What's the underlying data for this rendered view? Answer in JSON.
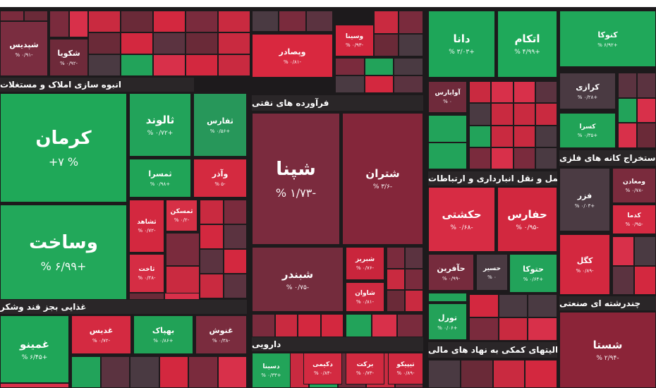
{
  "sections": [
    {
      "title": "انبوه سازی املاک و مستغلات"
    },
    {
      "title": "فرآورده های نفتی"
    },
    {
      "title": "ستخراج کانه های فلزی"
    },
    {
      "title": "حمل و نقل انبارداری و ارتباطات"
    },
    {
      "title": "غذایی بجز قند وشکر"
    },
    {
      "title": "دارویی"
    },
    {
      "title": "چندرشته ای صنعتی"
    },
    {
      "title": "فعالیتهای کمکی به نهاد های مالی"
    }
  ],
  "tiles": [
    {
      "label": "شپدیس",
      "change": "% ۰/۹۱-",
      "color": "#7a2d40"
    },
    {
      "label": "شکویا",
      "change": "% ۰/۹۲-",
      "color": "#6e2a3a"
    },
    {
      "label": "کرمان",
      "change": "+۷ %",
      "color": "#1fa858"
    },
    {
      "label": "وساخت",
      "change": "% ۶/۹۹+",
      "color": "#22a85a"
    },
    {
      "label": "ثالوند",
      "change": "% ۰/۷۲+",
      "color": "#22a35a"
    },
    {
      "label": "ثفارس",
      "change": "% ۰/۵۶+",
      "color": "#27975a"
    },
    {
      "label": "ثمسرا",
      "change": "% ۰/۹۸+",
      "color": "#20a457"
    },
    {
      "label": "وآذر",
      "change": "% ۵-",
      "color": "#d42a40"
    },
    {
      "label": "ثمسکن",
      "change": "% ۰/۲-",
      "color": "#d63046"
    },
    {
      "label": "ثشاهد",
      "change": "% ۰/۷۲-",
      "color": "#d3283f"
    },
    {
      "label": "ثاخت",
      "change": "% ۰/۲۸-",
      "color": "#d52d44"
    },
    {
      "label": "وپصادر",
      "change": "% ۰/۸۱-",
      "color": "#d9283f"
    },
    {
      "label": "وسینا",
      "change": "% ۰/۹۳-",
      "color": "#d3263d"
    },
    {
      "label": "شپنا",
      "change": "% ۱/۷۳-",
      "color": "#7b2b3e"
    },
    {
      "label": "شتران",
      "change": "% ۳/۶-",
      "color": "#84263a"
    },
    {
      "label": "شبندر",
      "change": "% ۰/۷۵-",
      "color": "#742c3d"
    },
    {
      "label": "شبریز",
      "change": "% ۰/۷۶-",
      "color": "#c9253c"
    },
    {
      "label": "شاوان",
      "change": "% ۰/۸۱-",
      "color": "#cf2a41"
    },
    {
      "label": "دانا",
      "change": "% ۳/۰۳+",
      "color": "#1ea659"
    },
    {
      "label": "اتکام",
      "change": "% ۴/۹۹+",
      "color": "#1fa95a"
    },
    {
      "label": "کنوکا",
      "change": "% ۶/۹۲+",
      "color": "#20a85a"
    },
    {
      "label": "آوابارس",
      "change": "% ۰",
      "color": "#6f2a3b"
    },
    {
      "label": "کرازی",
      "change": "% ۰/۲۸+",
      "color": "#4a3a42"
    },
    {
      "label": "کسرا",
      "change": "% ۰/۳۵+",
      "color": "#21a357"
    },
    {
      "label": "حکشتی",
      "change": "% ۰/۶۸-",
      "color": "#d72c44"
    },
    {
      "label": "حفارس",
      "change": "% ۰/۹۵-",
      "color": "#d2283f"
    },
    {
      "label": "حآفرین",
      "change": "% ۰/۹۹-",
      "color": "#762b3d"
    },
    {
      "label": "حسیر",
      "change": "% ۰",
      "color": "#4a3a42"
    },
    {
      "label": "حتوکا",
      "change": "% ۰/۶۴+",
      "color": "#22a35a"
    },
    {
      "label": "فزر",
      "change": "% ۰/۰۳+",
      "color": "#4b3b43"
    },
    {
      "label": "ومعادن",
      "change": "% ۰/۷۸-",
      "color": "#7a2b3d"
    },
    {
      "label": "کدما",
      "change": "% ۰/۹۵-",
      "color": "#d52a42"
    },
    {
      "label": "کگل",
      "change": "% ۰/۸۹-",
      "color": "#d3283f"
    },
    {
      "label": "تورل",
      "change": "% ۰/۰۶+",
      "color": "#23a259"
    },
    {
      "label": "شستا",
      "change": "% ۲/۹۴-",
      "color": "#8b2438"
    },
    {
      "label": "غمینو",
      "change": "% ۶/۴۵+",
      "color": "#1fa658"
    },
    {
      "label": "غدیس",
      "change": "% ۰/۷۲-",
      "color": "#d42a41"
    },
    {
      "label": "بهپاک",
      "change": "% ۰/۸۶+",
      "color": "#21a257"
    },
    {
      "label": "غنوش",
      "change": "% ۰/۳۸-",
      "color": "#7a2c3e"
    },
    {
      "label": "دسینا",
      "change": "% ۰/۳۳+",
      "color": "#22a459"
    },
    {
      "label": "دکیمی",
      "change": "% ۰/۸۴-",
      "color": "#d32a41"
    },
    {
      "label": "برکت",
      "change": "% ۰/۷۳-",
      "color": "#d12a40"
    },
    {
      "label": "تیپیکو",
      "change": "% ۰/۸۹-",
      "color": "#d02940"
    }
  ]
}
